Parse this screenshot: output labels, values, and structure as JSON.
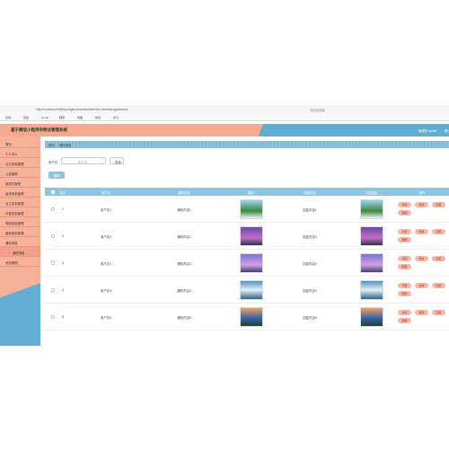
{
  "browser": {
    "url": "http://localhost:8080/springboot/admin/dist/index.html#/tongzhixiaoxi",
    "search": "在此处搜索",
    "bookmarks": [
      "应用",
      "百度",
      "Gmail",
      "翻译",
      "地图",
      "新闻",
      "学习"
    ]
  },
  "header": {
    "title": "基于微信小程序的物业管理系统",
    "user": "管理员 admin",
    "logout": "退出"
  },
  "menu": [
    "首页",
    "个人中心",
    "业主信息管理",
    "公告管理",
    "维修员管理",
    "留言信息管理",
    "业主信息管理",
    "访客信息管理",
    "收费信息管理",
    "缴费信息管理",
    "通知消息",
    "通知消息",
    "系统管理"
  ],
  "breadcrumb": [
    "首页",
    "通知消息"
  ],
  "search": {
    "label": "用户名",
    "placeholder": "用户名",
    "button": "查询"
  },
  "delete_button": "删除",
  "table": {
    "columns": [
      "索引",
      "用户名",
      "通知内容",
      "图片",
      "回复内容",
      "回复图片",
      "操作"
    ],
    "rows": [
      [
        "1",
        "用户名1",
        "通知内容1",
        "回复内容1"
      ],
      [
        "2",
        "用户名2",
        "通知内容2",
        "回复内容2"
      ],
      [
        "3",
        "用户名3",
        "通知内容3",
        "回复内容3"
      ],
      [
        "4",
        "用户名4",
        "通知内容4",
        "回复内容4"
      ],
      [
        "5",
        "用户名5",
        "通知内容5",
        "回复内容5"
      ]
    ],
    "actions": [
      "详情",
      "修改",
      "回复",
      "删除"
    ]
  }
}
